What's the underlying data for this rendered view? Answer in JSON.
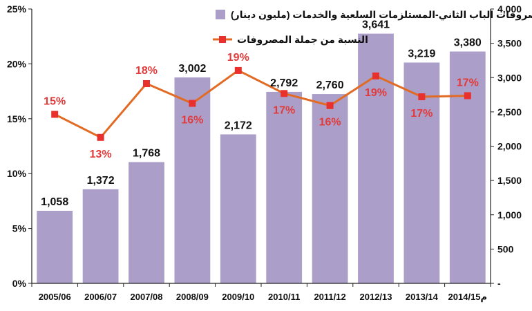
{
  "chart_data": {
    "type": "bar",
    "categories": [
      "2005/06",
      "2006/07",
      "2007/08",
      "2008/09",
      "2009/10",
      "2010/11",
      "2011/12",
      "2012/13",
      "2013/14",
      "2014/15م"
    ],
    "series": [
      {
        "name": "مصروفات الباب الثاني-المستلزمات السلعية والخدمات (مليون دينار)",
        "type": "bar",
        "axis": "right",
        "values": [
          1058,
          1372,
          1768,
          3002,
          2172,
          2792,
          2760,
          3641,
          3219,
          3380
        ],
        "labels": [
          "1,058",
          "1,372",
          "1,768",
          "3,002",
          "2,172",
          "2,792",
          "2,760",
          "3,641",
          "3,219",
          "3,380"
        ],
        "color": "#ab9fc9"
      },
      {
        "name": "النسبة من جملة المصروفات",
        "type": "line",
        "axis": "left",
        "values": [
          0.154,
          0.133,
          0.182,
          0.164,
          0.194,
          0.173,
          0.162,
          0.189,
          0.17,
          0.171
        ],
        "labels": [
          "15%",
          "13%",
          "18%",
          "16%",
          "19%",
          "17%",
          "16%",
          "19%",
          "17%",
          "17%"
        ],
        "label_position": [
          "above",
          "below",
          "above",
          "below",
          "above",
          "below",
          "below",
          "below",
          "below",
          "above"
        ],
        "color": "#e26a23",
        "marker_color": "#e8302c"
      }
    ],
    "y_left": {
      "ylim": [
        0,
        0.25
      ],
      "ticks": [
        0,
        0.05,
        0.1,
        0.15,
        0.2,
        0.25
      ],
      "tick_labels": [
        "0%",
        "5%",
        "10%",
        "15%",
        "20%",
        "25%"
      ]
    },
    "y_right": {
      "ylim": [
        0,
        4000
      ],
      "ticks": [
        0,
        500,
        1000,
        1500,
        2000,
        2500,
        3000,
        3500,
        4000
      ],
      "tick_labels": [
        "-",
        "500",
        "1,000",
        "1,500",
        "2,000",
        "2,500",
        "3,000",
        "3,500",
        "4,000"
      ]
    },
    "grid": false,
    "legend_position": "top-left"
  }
}
